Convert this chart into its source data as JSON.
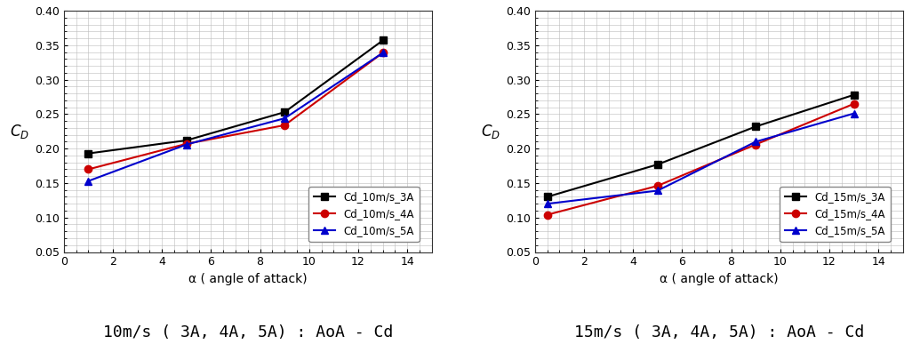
{
  "plot1": {
    "title": "10m/s ( 3A, 4A, 5A) : AoA - Cd",
    "x": [
      1,
      5,
      9,
      13
    ],
    "series": [
      {
        "label": "Cd_10m/s_3A",
        "color": "#000000",
        "marker": "s",
        "y": [
          0.193,
          0.212,
          0.253,
          0.357
        ]
      },
      {
        "label": "Cd_10m/s_4A",
        "color": "#cc0000",
        "marker": "o",
        "y": [
          0.17,
          0.207,
          0.234,
          0.339
        ]
      },
      {
        "label": "Cd_10m/s_5A",
        "color": "#0000cc",
        "marker": "^",
        "y": [
          0.153,
          0.206,
          0.244,
          0.339
        ]
      }
    ],
    "xlabel": "α ( angle of attack)",
    "ylabel": "$C_D$",
    "xlim": [
      0,
      15
    ],
    "ylim": [
      0.05,
      0.4
    ],
    "xticks": [
      0,
      2,
      4,
      6,
      8,
      10,
      12,
      14
    ],
    "yticks": [
      0.05,
      0.1,
      0.15,
      0.2,
      0.25,
      0.3,
      0.35,
      0.4
    ]
  },
  "plot2": {
    "title": "15m/s ( 3A, 4A, 5A) : AoA - Cd",
    "x": [
      0.5,
      5,
      9,
      13
    ],
    "series": [
      {
        "label": "Cd_15m/s_3A",
        "color": "#000000",
        "marker": "s",
        "y": [
          0.13,
          0.177,
          0.232,
          0.278
        ]
      },
      {
        "label": "Cd_15m/s_4A",
        "color": "#cc0000",
        "marker": "o",
        "y": [
          0.104,
          0.146,
          0.206,
          0.265
        ]
      },
      {
        "label": "Cd_15m/s_5A",
        "color": "#0000cc",
        "marker": "^",
        "y": [
          0.12,
          0.139,
          0.21,
          0.251
        ]
      }
    ],
    "xlabel": "α ( angle of attack)",
    "ylabel": "$C_D$",
    "xlim": [
      0,
      15
    ],
    "ylim": [
      0.05,
      0.4
    ],
    "xticks": [
      0,
      2,
      4,
      6,
      8,
      10,
      12,
      14
    ],
    "yticks": [
      0.05,
      0.1,
      0.15,
      0.2,
      0.25,
      0.3,
      0.35,
      0.4
    ]
  },
  "background_color": "#ffffff",
  "grid_color": "#bbbbbb",
  "figure_title_fontsize": 13,
  "axis_label_fontsize": 10,
  "tick_fontsize": 9,
  "legend_fontsize": 8.5,
  "line_width": 1.5,
  "marker_size": 6
}
